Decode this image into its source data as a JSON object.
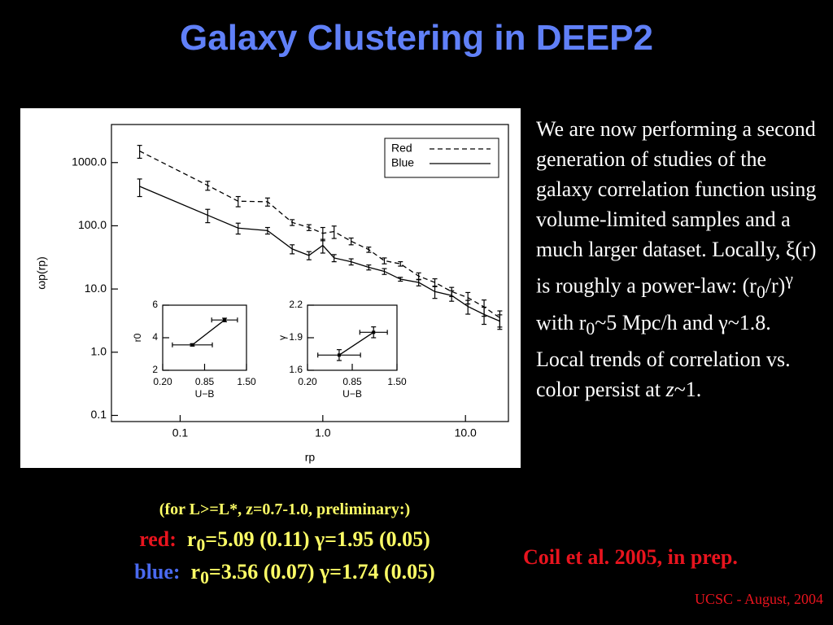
{
  "title": "Galaxy Clustering in DEEP2",
  "body": [
    "We are now performing a second generation of studies of the galaxy correlation function using volume-limited samples and a much larger dataset.  Locally, ξ(r) is roughly a power-law: (r",
    "0",
    "/r)",
    "γ",
    "   with r",
    "0",
    "~5 Mpc/h and γ~1.8.  Local trends of correlation vs. color persist at ",
    "z",
    "~1."
  ],
  "note": "(for L>=L*, z=0.7-1.0, preliminary:)",
  "red_line": [
    "red:",
    "r",
    "0",
    "=5.09 (0.11)  γ=1.95 (0.05)"
  ],
  "blue_line": [
    "blue:",
    "r",
    "0",
    "=3.56 (0.07)  γ=1.74 (0.05)"
  ],
  "reference": "Coil et al. 2005, in prep.",
  "footer": "UCSC - August, 2004",
  "chart_data": [
    {
      "type": "line",
      "xlabel": "rp",
      "ylabel": "ωp(rp)",
      "xlog": true,
      "ylog": true,
      "xlim": [
        0.033,
        20
      ],
      "ylim": [
        0.08,
        4000
      ],
      "xticks": [
        0.1,
        {
          "value": 1,
          "label": "1.0"
        },
        {
          "value": 10,
          "label": "10.0"
        }
      ],
      "yticks": [
        0.1,
        {
          "value": 1,
          "label": "1.0"
        },
        {
          "value": 10,
          "label": "10.0"
        },
        {
          "value": 100,
          "label": "100.0"
        },
        {
          "value": 1000,
          "label": "1000.0"
        }
      ],
      "legend": "upper right",
      "x": [
        0.052,
        0.156,
        0.255,
        0.41,
        0.61,
        0.8,
        1.0,
        1.2,
        1.58,
        2.1,
        2.7,
        3.5,
        4.7,
        6.1,
        8.0,
        10.4,
        13.5,
        17.4
      ],
      "series": [
        {
          "name": "Red",
          "color": "#000000",
          "line_style": "dashed",
          "values": [
            1520,
            435,
            245,
            240,
            113,
            94,
            76,
            81,
            57,
            42,
            28,
            25,
            16,
            12.7,
            9.1,
            7.3,
            5.2,
            3.5
          ],
          "errors": [
            350,
            70,
            45,
            35,
            12,
            10,
            18,
            18,
            7,
            4,
            3,
            2,
            2,
            1.8,
            1.5,
            1.5,
            1.5,
            1
          ]
        },
        {
          "name": "Blue",
          "color": "#000000",
          "line_style": "solid",
          "values": [
            420,
            147,
            92,
            84,
            43,
            34,
            49,
            31,
            27,
            22,
            19,
            14.3,
            12.7,
            9.1,
            7.9,
            5.3,
            3.96,
            3.1
          ],
          "errors": [
            130,
            35,
            18,
            10,
            7,
            5,
            12,
            4,
            3,
            2,
            2,
            1,
            1.5,
            2,
            1.5,
            1.3,
            1.2,
            0.8
          ]
        }
      ]
    },
    {
      "type": "line",
      "xlabel": "U−B",
      "ylabel": "r0",
      "xlim": [
        0.2,
        1.5
      ],
      "ylim": [
        2,
        6
      ],
      "xticks": [
        {
          "value": 0.2,
          "label": "0.20"
        },
        0.85,
        {
          "value": 1.5,
          "label": "1.50"
        }
      ],
      "yticks": [
        2,
        4,
        6
      ],
      "x": [
        0.66,
        1.16
      ],
      "xerrors": [
        0.31,
        0.2
      ],
      "series": [
        {
          "color": "#000000",
          "line_style": "solid",
          "values": [
            3.56,
            5.09
          ],
          "errors": [
            0.07,
            0.11
          ]
        }
      ]
    },
    {
      "type": "line",
      "xlabel": "U−B",
      "ylabel": "γ",
      "xlim": [
        0.2,
        1.5
      ],
      "ylim": [
        1.6,
        2.2
      ],
      "xticks": [
        {
          "value": 0.2,
          "label": "0.20"
        },
        0.85,
        {
          "value": 1.5,
          "label": "1.50"
        }
      ],
      "yticks": [
        1.6,
        1.9,
        2.2
      ],
      "x": [
        0.66,
        1.16
      ],
      "xerrors": [
        0.31,
        0.2
      ],
      "series": [
        {
          "color": "#000000",
          "line_style": "solid",
          "values": [
            1.74,
            1.95
          ],
          "errors": [
            0.05,
            0.05
          ]
        }
      ]
    }
  ]
}
